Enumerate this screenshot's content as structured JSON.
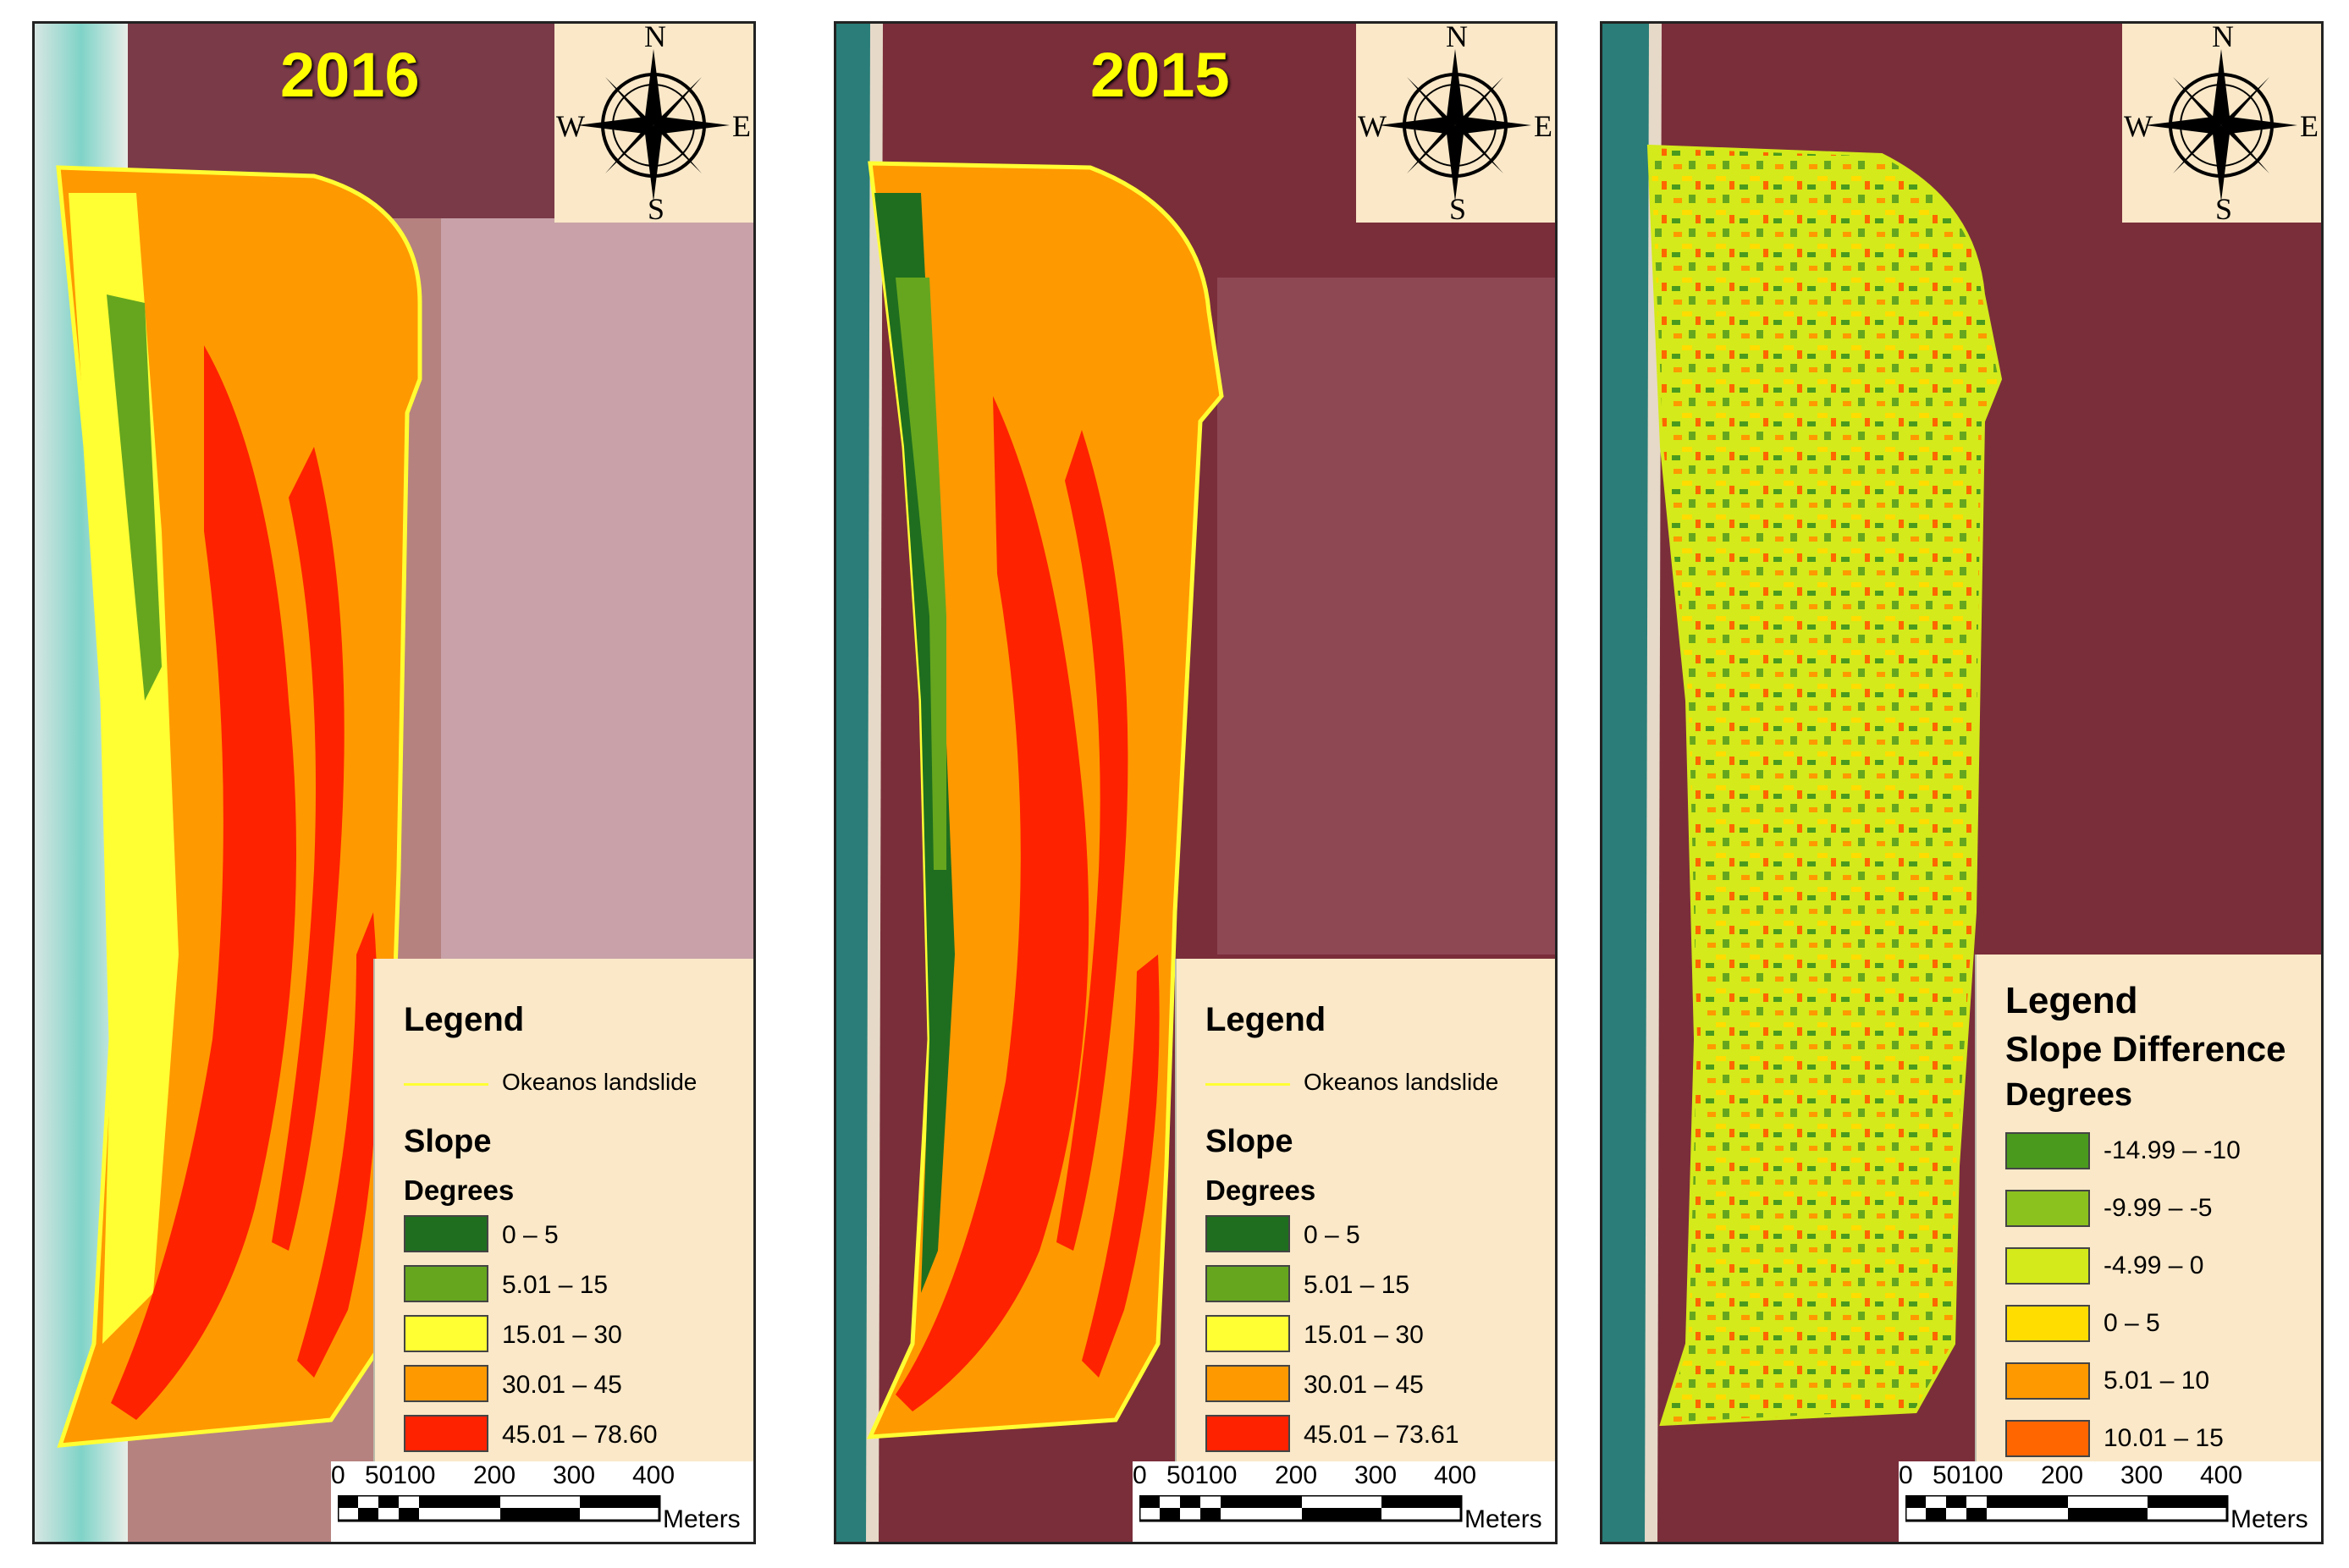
{
  "colors": {
    "slope": [
      "#1f6e1f",
      "#66a61e",
      "#ffff33",
      "#ff9900",
      "#ff2200"
    ],
    "difference": [
      "#4a9a1e",
      "#8cc21e",
      "#d4ea1a",
      "#ffdd00",
      "#ff9900",
      "#ff6600"
    ],
    "boundary": "#ffff33",
    "legend_bg": "#fae8c8",
    "year_label": "#ffff00"
  },
  "panels": [
    {
      "year_label": "2016",
      "compass": {
        "n": "N",
        "s": "S",
        "e": "E",
        "w": "W"
      },
      "legend": {
        "title": "Legend",
        "boundary_label": "Okeanos landslide",
        "layer_title": "Slope",
        "units": "Degrees",
        "classes": [
          "0 – 5",
          "5.01 – 15",
          "15.01 – 30",
          "30.01 – 45",
          "45.01 – 78.60"
        ]
      },
      "scalebar": {
        "ticks": [
          "0",
          "50100",
          "200",
          "300",
          "400"
        ],
        "unit": "Meters"
      }
    },
    {
      "year_label": "2015",
      "compass": {
        "n": "N",
        "s": "S",
        "e": "E",
        "w": "W"
      },
      "legend": {
        "title": "Legend",
        "boundary_label": "Okeanos landslide",
        "layer_title": "Slope",
        "units": "Degrees",
        "classes": [
          "0 – 5",
          "5.01 – 15",
          "15.01 – 30",
          "30.01 – 45",
          "45.01 – 73.61"
        ]
      },
      "scalebar": {
        "ticks": [
          "0",
          "50100",
          "200",
          "300",
          "400"
        ],
        "unit": "Meters"
      }
    },
    {
      "year_label": "",
      "compass": {
        "n": "N",
        "s": "S",
        "e": "E",
        "w": "W"
      },
      "legend": {
        "title": "Legend",
        "layer_title": "Slope Difference",
        "units": "Degrees",
        "classes": [
          "-14.99 – -10",
          "-9.99 – -5",
          "-4.99 – 0",
          "0 – 5",
          "5.01 – 10",
          "10.01 – 15"
        ]
      },
      "scalebar": {
        "ticks": [
          "0",
          "50100",
          "200",
          "300",
          "400"
        ],
        "unit": "Meters"
      }
    }
  ]
}
